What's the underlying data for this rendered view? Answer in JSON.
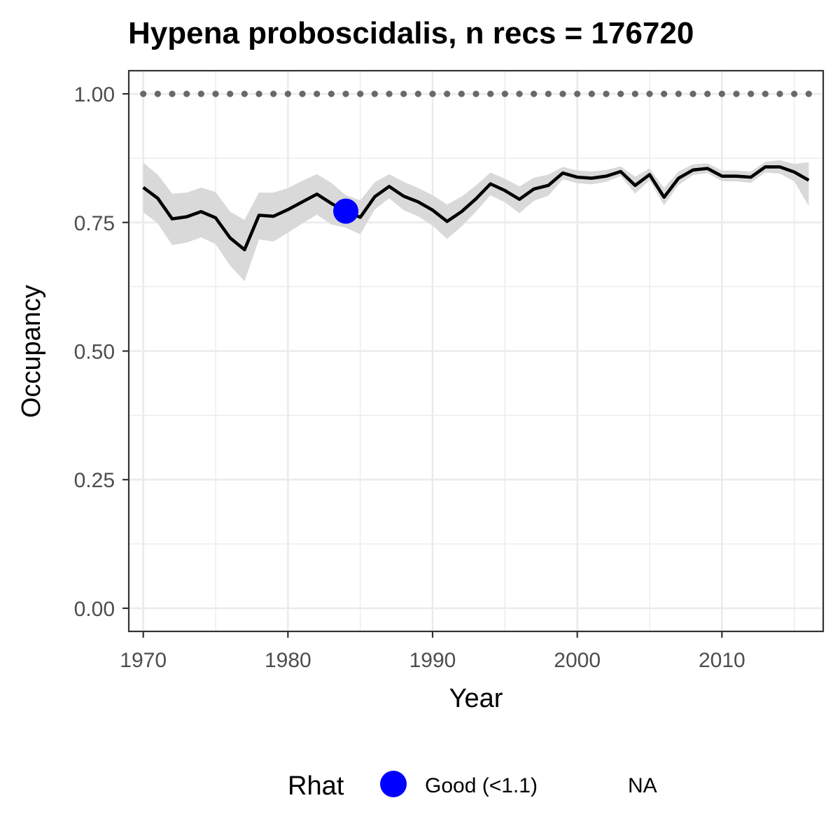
{
  "chart_data": {
    "type": "line",
    "title": "Hypena proboscidalis, n recs = 176720",
    "xlabel": "Year",
    "ylabel": "Occupancy",
    "xlim": [
      1969,
      2017
    ],
    "ylim": [
      -0.045,
      1.045
    ],
    "x_ticks": [
      "1970",
      "1980",
      "1990",
      "2000",
      "2010"
    ],
    "y_ticks": [
      "0.00",
      "0.25",
      "0.50",
      "0.75",
      "1.00"
    ],
    "grid": true,
    "legend": {
      "position": "bottom",
      "title": "Rhat",
      "entries": [
        {
          "label": "Good (<1.1)",
          "color": "#0000ff"
        },
        {
          "label": "NA",
          "color": ""
        }
      ]
    },
    "series": [
      {
        "kind": "line",
        "color": "#000000",
        "x": [
          1970,
          1971,
          1972,
          1973,
          1974,
          1975,
          1976,
          1977,
          1978,
          1979,
          1980,
          1981,
          1982,
          1983,
          1984,
          1985,
          1986,
          1987,
          1988,
          1989,
          1990,
          1991,
          1992,
          1993,
          1994,
          1995,
          1996,
          1997,
          1998,
          1999,
          2000,
          2001,
          2002,
          2003,
          2004,
          2005,
          2006,
          2007,
          2008,
          2009,
          2010,
          2011,
          2012,
          2013,
          2014,
          2015,
          2016
        ],
        "y": [
          0.818,
          0.797,
          0.757,
          0.761,
          0.771,
          0.759,
          0.72,
          0.697,
          0.764,
          0.762,
          0.775,
          0.79,
          0.805,
          0.787,
          0.772,
          0.76,
          0.8,
          0.82,
          0.801,
          0.79,
          0.774,
          0.752,
          0.771,
          0.796,
          0.825,
          0.812,
          0.795,
          0.815,
          0.822,
          0.846,
          0.838,
          0.836,
          0.84,
          0.849,
          0.822,
          0.843,
          0.799,
          0.836,
          0.852,
          0.855,
          0.84,
          0.84,
          0.838,
          0.858,
          0.858,
          0.848,
          0.832
        ]
      },
      {
        "kind": "ribbon",
        "color": "#d9d9d9",
        "x": [
          1970,
          1971,
          1972,
          1973,
          1974,
          1975,
          1976,
          1977,
          1978,
          1979,
          1980,
          1981,
          1982,
          1983,
          1984,
          1985,
          1986,
          1987,
          1988,
          1989,
          1990,
          1991,
          1992,
          1993,
          1994,
          1995,
          1996,
          1997,
          1998,
          1999,
          2000,
          2001,
          2002,
          2003,
          2004,
          2005,
          2006,
          2007,
          2008,
          2009,
          2010,
          2011,
          2012,
          2013,
          2014,
          2015,
          2016
        ],
        "lower": [
          0.77,
          0.748,
          0.706,
          0.711,
          0.721,
          0.708,
          0.666,
          0.636,
          0.717,
          0.713,
          0.73,
          0.748,
          0.765,
          0.746,
          0.74,
          0.727,
          0.775,
          0.797,
          0.774,
          0.762,
          0.744,
          0.718,
          0.742,
          0.771,
          0.803,
          0.789,
          0.768,
          0.792,
          0.802,
          0.834,
          0.826,
          0.824,
          0.829,
          0.84,
          0.806,
          0.832,
          0.783,
          0.823,
          0.842,
          0.846,
          0.83,
          0.83,
          0.827,
          0.847,
          0.845,
          0.83,
          0.782
        ],
        "upper": [
          0.866,
          0.843,
          0.806,
          0.808,
          0.818,
          0.809,
          0.771,
          0.755,
          0.808,
          0.808,
          0.817,
          0.831,
          0.844,
          0.827,
          0.803,
          0.793,
          0.828,
          0.844,
          0.829,
          0.817,
          0.803,
          0.785,
          0.8,
          0.822,
          0.847,
          0.835,
          0.82,
          0.837,
          0.843,
          0.858,
          0.851,
          0.849,
          0.852,
          0.859,
          0.839,
          0.855,
          0.817,
          0.849,
          0.863,
          0.865,
          0.851,
          0.851,
          0.849,
          0.868,
          0.871,
          0.864,
          0.867
        ]
      },
      {
        "kind": "points",
        "color": "#696969",
        "x": [
          1970,
          1971,
          1972,
          1973,
          1974,
          1975,
          1976,
          1977,
          1978,
          1979,
          1980,
          1981,
          1982,
          1983,
          1984,
          1985,
          1986,
          1987,
          1988,
          1989,
          1990,
          1991,
          1992,
          1993,
          1994,
          1995,
          1996,
          1997,
          1998,
          1999,
          2000,
          2001,
          2002,
          2003,
          2004,
          2005,
          2006,
          2007,
          2008,
          2009,
          2010,
          2011,
          2012,
          2013,
          2014,
          2015,
          2016
        ],
        "y": [
          1,
          1,
          1,
          1,
          1,
          1,
          1,
          1,
          1,
          1,
          1,
          1,
          1,
          1,
          1,
          1,
          1,
          1,
          1,
          1,
          1,
          1,
          1,
          1,
          1,
          1,
          1,
          1,
          1,
          1,
          1,
          1,
          1,
          1,
          1,
          1,
          1,
          1,
          1,
          1,
          1,
          1,
          1,
          1,
          1,
          1,
          1
        ]
      },
      {
        "kind": "rhat-points",
        "name": "Good (<1.1)",
        "color": "#0000ff",
        "x": [
          1984
        ],
        "y": [
          0.772
        ]
      }
    ]
  }
}
